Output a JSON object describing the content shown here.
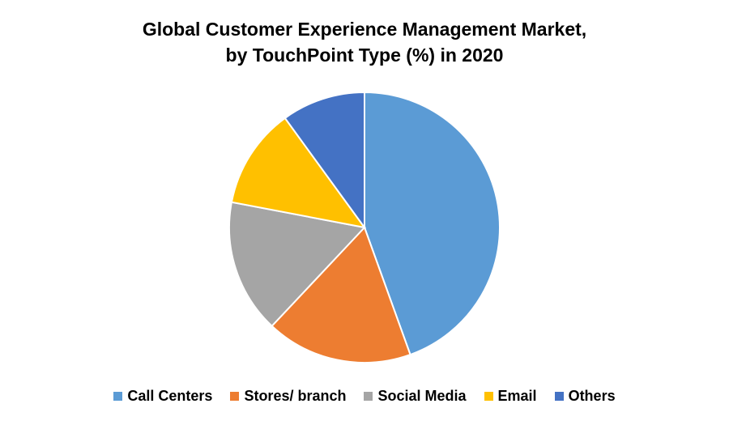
{
  "chart_data": {
    "type": "pie",
    "title_line1": "Global Customer Experience Management Market,",
    "title_line2": "by TouchPoint Type (%) in 2020",
    "slices": [
      {
        "label": "Call Centers",
        "value": 44.5,
        "color": "#5B9BD5"
      },
      {
        "label": "Stores/ branch",
        "value": 17.5,
        "color": "#ED7D31"
      },
      {
        "label": "Social Media",
        "value": 16.0,
        "color": "#A5A5A5"
      },
      {
        "label": "Email",
        "value": 12.0,
        "color": "#FFC000"
      },
      {
        "label": "Others",
        "value": 10.0,
        "color": "#4472C4"
      }
    ],
    "legend_position": "bottom"
  }
}
